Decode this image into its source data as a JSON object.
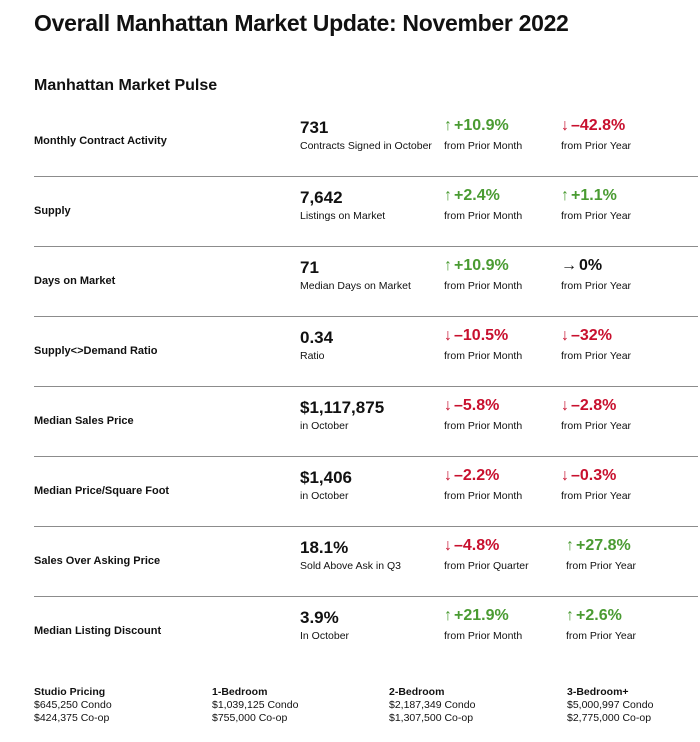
{
  "title": "Overall Manhattan Market Update: November 2022",
  "subtitle": "Manhattan Market Pulse",
  "rows": [
    {
      "label": "Monthly Contract Activity",
      "value": "731",
      "caption": "Contracts Signed  in October",
      "c1": {
        "dir": "up",
        "arrow": "↑",
        "value": "+10.9%",
        "caption": "from Prior Month"
      },
      "c2": {
        "dir": "down",
        "arrow": "↓",
        "value": "–42.8%",
        "caption": "from Prior Year"
      }
    },
    {
      "label": "Supply",
      "value": "7,642",
      "caption": "Listings on Market",
      "c1": {
        "dir": "up",
        "arrow": "↑",
        "value": "+2.4%",
        "caption": "from Prior Month"
      },
      "c2": {
        "dir": "up",
        "arrow": "↑",
        "value": "+1.1%",
        "caption": "from Prior Year"
      }
    },
    {
      "label": "Days on Market",
      "value": "71",
      "caption": "Median Days on Market",
      "c1": {
        "dir": "up",
        "arrow": "↑",
        "value": "+10.9%",
        "caption": "from Prior Month"
      },
      "c2": {
        "dir": "flat",
        "arrow": "→",
        "value": "0%",
        "caption": "from Prior Year"
      }
    },
    {
      "label": "Supply<>Demand Ratio",
      "value": "0.34",
      "caption": "Ratio",
      "c1": {
        "dir": "down",
        "arrow": "↓",
        "value": "–10.5%",
        "caption": "from Prior Month"
      },
      "c2": {
        "dir": "down",
        "arrow": "↓",
        "value": "–32%",
        "caption": "from Prior Year"
      }
    },
    {
      "label": "Median Sales Price",
      "value": "$1,117,875",
      "caption": "in October",
      "c1": {
        "dir": "down",
        "arrow": "↓",
        "value": "–5.8%",
        "caption": "from Prior Month"
      },
      "c2": {
        "dir": "down",
        "arrow": "↓",
        "value": "–2.8%",
        "caption": "from Prior Year"
      }
    },
    {
      "label": "Median Price/Square Foot",
      "value": "$1,406",
      "caption": "in October",
      "c1": {
        "dir": "down",
        "arrow": "↓",
        "value": "–2.2%",
        "caption": "from Prior Month"
      },
      "c2": {
        "dir": "down",
        "arrow": "↓",
        "value": "–0.3%",
        "caption": "from Prior Year"
      }
    },
    {
      "label": "Sales Over Asking Price",
      "value": "18.1%",
      "caption": "Sold Above Ask in Q3",
      "c1": {
        "dir": "down",
        "arrow": "↓",
        "value": "–4.8%",
        "caption": "from Prior Quarter"
      },
      "c2": {
        "dir": "up",
        "arrow": "↑",
        "value": "+27.8%",
        "caption": "from Prior Year"
      }
    },
    {
      "label": "Median Listing Discount",
      "value": "3.9%",
      "caption": "In October",
      "c1": {
        "dir": "up",
        "arrow": "↑",
        "value": "+21.9%",
        "caption": "from Prior Month"
      },
      "c2": {
        "dir": "up",
        "arrow": "↑",
        "value": "+2.6%",
        "caption": "from Prior Year"
      }
    }
  ],
  "pricing": [
    {
      "heading": "Studio Pricing",
      "condo": "$645,250 Condo",
      "coop": "$424,375 Co-op"
    },
    {
      "heading": "1-Bedroom",
      "condo": "$1,039,125 Condo",
      "coop": "$755,000 Co-op"
    },
    {
      "heading": "2-Bedroom",
      "condo": "$2,187,349 Condo",
      "coop": "$1,307,500 Co-op"
    },
    {
      "heading": "3-Bedroom+",
      "condo": "$5,000,997 Condo",
      "coop": "$2,775,000 Co-op"
    }
  ],
  "colors": {
    "up": "#4a9b32",
    "down": "#c8102e",
    "flat": "#111111"
  }
}
